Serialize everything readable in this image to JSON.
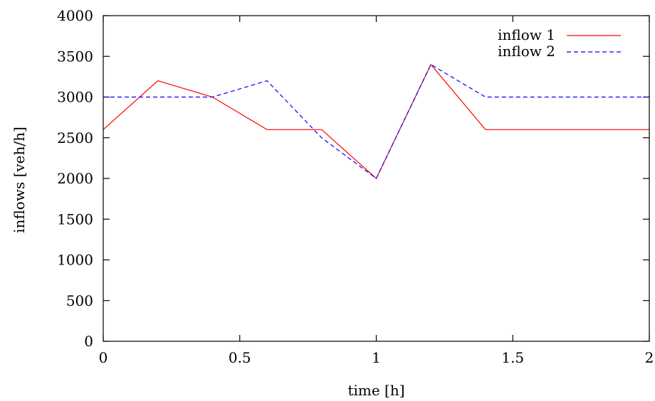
{
  "chart_data": {
    "type": "line",
    "title": "",
    "xlabel": "time [h]",
    "ylabel": "inflows [veh/h]",
    "xlim": [
      0,
      2
    ],
    "ylim": [
      0,
      4000
    ],
    "xticks": [
      "0",
      "0.5",
      "1",
      "1.5",
      "2"
    ],
    "yticks": [
      "0",
      "500",
      "1000",
      "1500",
      "2000",
      "2500",
      "3000",
      "3500",
      "4000"
    ],
    "grid": false,
    "legend_position": "top-right",
    "series": [
      {
        "name": "inflow 1",
        "color": "#ff0000",
        "style": "solid",
        "x": [
          0,
          0.2,
          0.4,
          0.6,
          0.8,
          1.0,
          1.2,
          1.4,
          1.6,
          1.8,
          2.0
        ],
        "y": [
          2600,
          3200,
          3000,
          2600,
          2600,
          2000,
          3400,
          2600,
          2600,
          2600,
          2600
        ]
      },
      {
        "name": "inflow 2",
        "color": "#0000ff",
        "style": "dashed",
        "x": [
          0,
          0.2,
          0.4,
          0.6,
          0.8,
          1.0,
          1.2,
          1.4,
          1.6,
          1.8,
          2.0
        ],
        "y": [
          3000,
          3000,
          3000,
          3200,
          2500,
          2000,
          3400,
          3000,
          3000,
          3000,
          3000
        ]
      }
    ]
  }
}
